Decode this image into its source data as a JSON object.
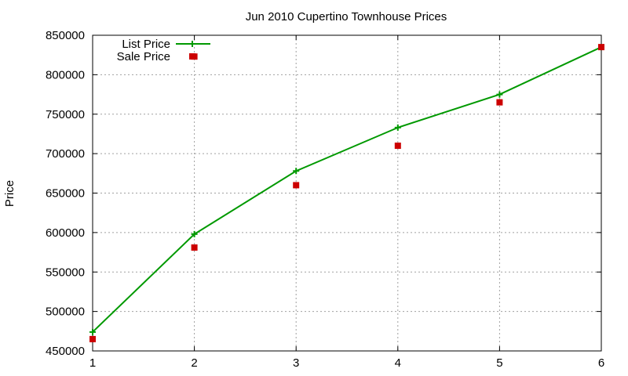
{
  "chart_data": {
    "type": "line",
    "title": "Jun 2010 Cupertino Townhouse Prices",
    "xlabel": "",
    "ylabel": "Price",
    "xlim": [
      1,
      6
    ],
    "ylim": [
      450000,
      850000
    ],
    "x_ticks": [
      "1",
      "2",
      "3",
      "4",
      "5",
      "6"
    ],
    "y_ticks": [
      "450000",
      "500000",
      "550000",
      "600000",
      "650000",
      "700000",
      "750000",
      "800000",
      "850000"
    ],
    "grid": true,
    "legend_position": "top-left",
    "series": [
      {
        "name": "List Price",
        "style": "linespoints",
        "color": "#009900",
        "x": [
          1,
          2,
          3,
          4,
          5,
          6
        ],
        "values": [
          474000,
          598000,
          678000,
          733000,
          775000,
          835000
        ]
      },
      {
        "name": "Sale Price",
        "style": "points",
        "color": "#cc0000",
        "x": [
          1,
          2,
          3,
          4,
          5,
          6
        ],
        "values": [
          465000,
          581000,
          660000,
          710000,
          765000,
          835000
        ]
      }
    ]
  },
  "extra_points": [
    {
      "series": "Sale Price",
      "x": 2,
      "y": 823000
    }
  ]
}
